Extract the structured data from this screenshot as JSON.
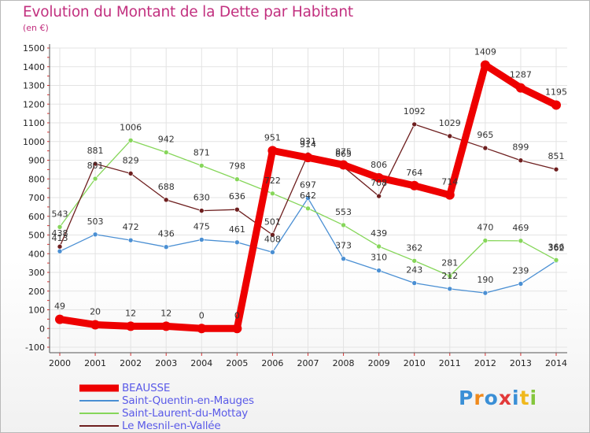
{
  "title": "Evolution du Montant de la Dette par Habitant",
  "subtitle": "(en €)",
  "logo": {
    "text": "Proxiti",
    "letter_colors": [
      "#3a8fd6",
      "#f08a1c",
      "#3a8fd6",
      "#e23a3a",
      "#3a8fd6",
      "#f0b81c",
      "#84c63c"
    ]
  },
  "chart_data": {
    "type": "line",
    "x": [
      2000,
      2001,
      2002,
      2003,
      2004,
      2005,
      2006,
      2007,
      2008,
      2009,
      2010,
      2011,
      2012,
      2013,
      2014
    ],
    "ylim": [
      -100,
      1500
    ],
    "yticks": [
      -100,
      0,
      100,
      200,
      300,
      400,
      500,
      600,
      700,
      800,
      900,
      1000,
      1100,
      1200,
      1300,
      1400,
      1500
    ],
    "grid": true,
    "legend_position": "bottom-left",
    "series": [
      {
        "name": "BEAUSSE",
        "color": "#ee0000",
        "values": [
          49,
          20,
          12,
          12,
          0,
          0,
          951,
          914,
          875,
          806,
          764,
          714,
          1409,
          1287,
          1195
        ]
      },
      {
        "name": "Saint-Quentin-en-Mauges",
        "color": "#4a8fd3",
        "values": [
          413,
          503,
          472,
          436,
          475,
          461,
          408,
          697,
          373,
          310,
          243,
          212,
          190,
          239,
          362
        ]
      },
      {
        "name": "Saint-Laurent-du-Mottay",
        "color": "#86d65a",
        "values": [
          543,
          801,
          1006,
          942,
          871,
          798,
          722,
          642,
          553,
          439,
          362,
          281,
          470,
          469,
          366
        ]
      },
      {
        "name": "Le Mesnil-en-Vallée",
        "color": "#6e1f1f",
        "values": [
          438,
          881,
          829,
          688,
          630,
          636,
          501,
          931,
          865,
          708,
          1092,
          1029,
          965,
          899,
          851
        ]
      }
    ]
  }
}
